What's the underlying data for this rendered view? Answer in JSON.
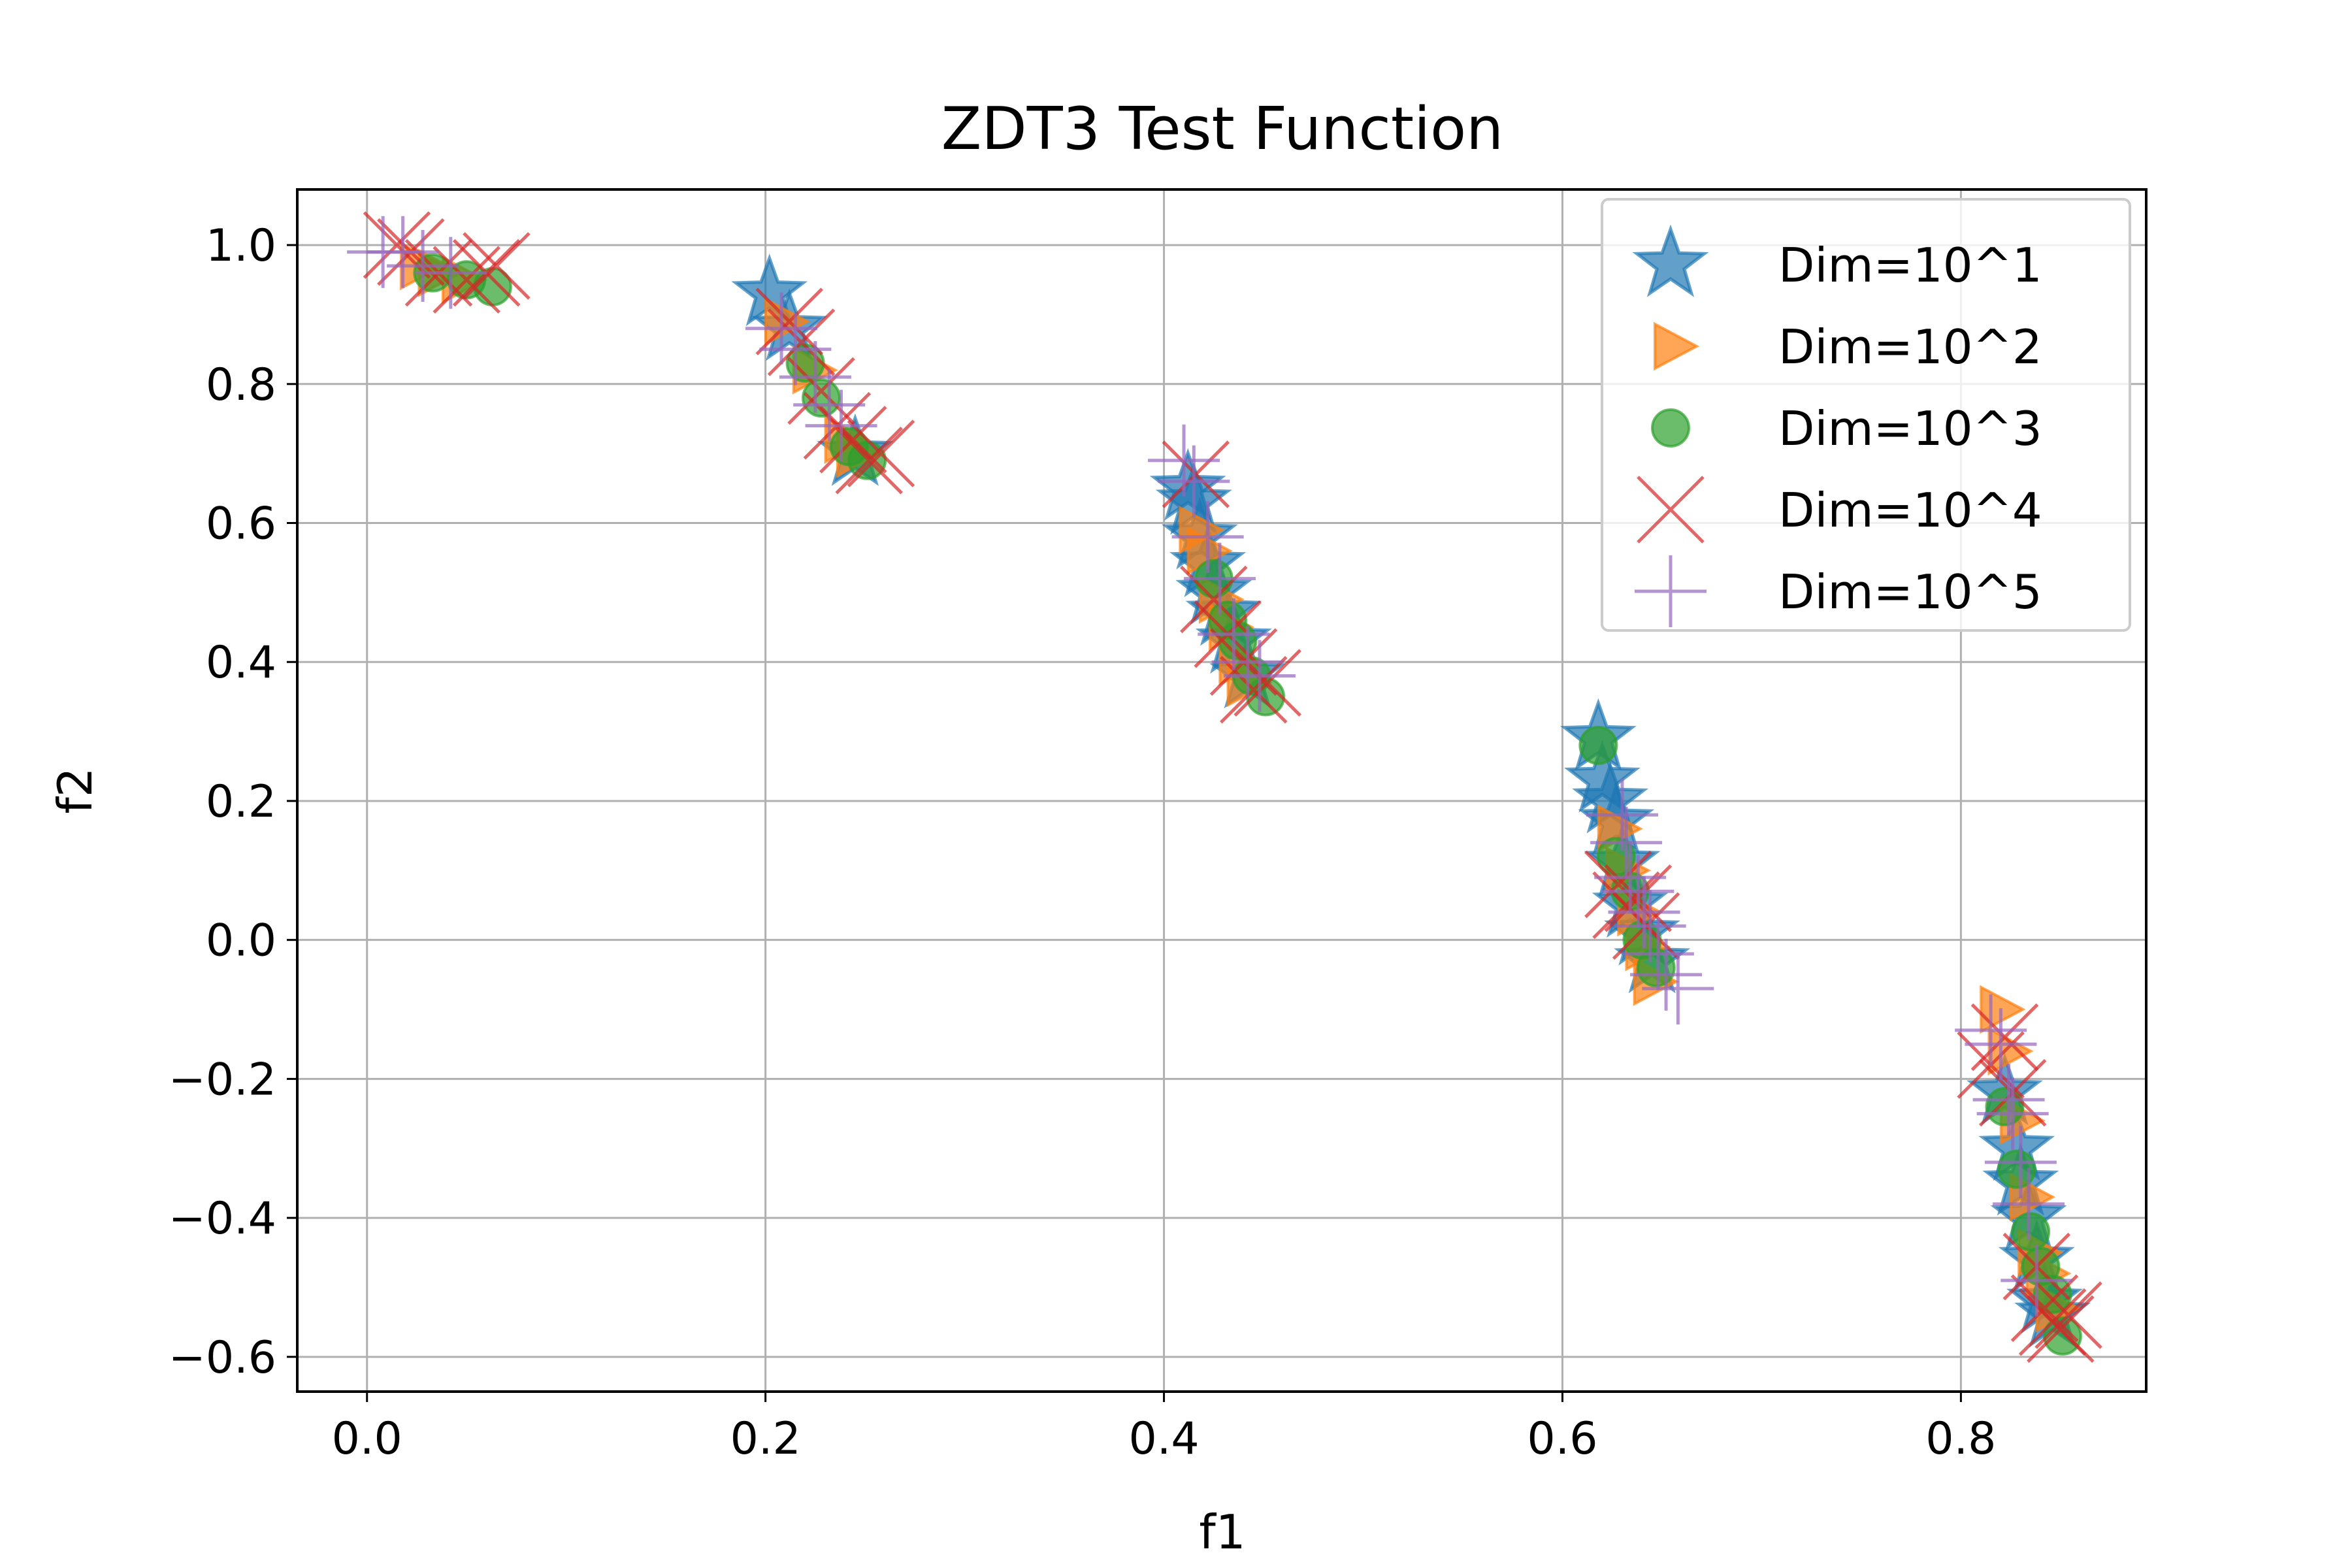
{
  "chart_data": {
    "type": "scatter",
    "title": "ZDT3 Test Function",
    "xlabel": "f1",
    "ylabel": "f2",
    "xlim": [
      -0.035,
      0.893
    ],
    "ylim": [
      -0.65,
      1.08
    ],
    "xticks": [
      0.0,
      0.2,
      0.4,
      0.6,
      0.8
    ],
    "xtick_labels": [
      "0.0",
      "0.2",
      "0.4",
      "0.6",
      "0.8"
    ],
    "yticks": [
      -0.6,
      -0.4,
      -0.2,
      0.0,
      0.2,
      0.4,
      0.6,
      0.8,
      1.0
    ],
    "ytick_labels": [
      "−0.6",
      "−0.4",
      "−0.2",
      "0.0",
      "0.2",
      "0.4",
      "0.6",
      "0.8",
      "1.0"
    ],
    "grid": true,
    "legend_position": "top-right",
    "series": [
      {
        "name": "Dim=10^1",
        "marker": "star",
        "color": "#1f77b4",
        "points": [
          [
            0.202,
            0.93
          ],
          [
            0.212,
            0.88
          ],
          [
            0.245,
            0.7
          ],
          [
            0.412,
            0.65
          ],
          [
            0.415,
            0.63
          ],
          [
            0.418,
            0.58
          ],
          [
            0.422,
            0.54
          ],
          [
            0.425,
            0.5
          ],
          [
            0.43,
            0.47
          ],
          [
            0.435,
            0.43
          ],
          [
            0.442,
            0.38
          ],
          [
            0.618,
            0.29
          ],
          [
            0.62,
            0.23
          ],
          [
            0.624,
            0.2
          ],
          [
            0.627,
            0.17
          ],
          [
            0.63,
            0.11
          ],
          [
            0.634,
            0.05
          ],
          [
            0.64,
            0.01
          ],
          [
            0.645,
            -0.03
          ],
          [
            0.822,
            -0.22
          ],
          [
            0.828,
            -0.3
          ],
          [
            0.83,
            -0.35
          ],
          [
            0.834,
            -0.4
          ],
          [
            0.838,
            -0.46
          ],
          [
            0.842,
            -0.52
          ],
          [
            0.846,
            -0.54
          ]
        ]
      },
      {
        "name": "Dim=10^2",
        "marker": "triangle-right",
        "color": "#ff7f0e",
        "points": [
          [
            0.025,
            0.97
          ],
          [
            0.034,
            0.96
          ],
          [
            0.046,
            0.95
          ],
          [
            0.208,
            0.89
          ],
          [
            0.222,
            0.82
          ],
          [
            0.238,
            0.72
          ],
          [
            0.244,
            0.7
          ],
          [
            0.416,
            0.59
          ],
          [
            0.42,
            0.56
          ],
          [
            0.426,
            0.49
          ],
          [
            0.431,
            0.45
          ],
          [
            0.436,
            0.4
          ],
          [
            0.44,
            0.37
          ],
          [
            0.626,
            0.16
          ],
          [
            0.63,
            0.1
          ],
          [
            0.636,
            0.04
          ],
          [
            0.64,
            -0.01
          ],
          [
            0.644,
            -0.06
          ],
          [
            0.818,
            -0.1
          ],
          [
            0.822,
            -0.16
          ],
          [
            0.828,
            -0.26
          ],
          [
            0.833,
            -0.37
          ],
          [
            0.837,
            -0.45
          ],
          [
            0.841,
            -0.48
          ],
          [
            0.846,
            -0.53
          ]
        ]
      },
      {
        "name": "Dim=10^3",
        "marker": "circle",
        "color": "#2ca02c",
        "points": [
          [
            0.033,
            0.96
          ],
          [
            0.05,
            0.95
          ],
          [
            0.063,
            0.94
          ],
          [
            0.22,
            0.83
          ],
          [
            0.228,
            0.78
          ],
          [
            0.242,
            0.71
          ],
          [
            0.251,
            0.69
          ],
          [
            0.425,
            0.52
          ],
          [
            0.432,
            0.46
          ],
          [
            0.437,
            0.43
          ],
          [
            0.444,
            0.38
          ],
          [
            0.451,
            0.35
          ],
          [
            0.618,
            0.28
          ],
          [
            0.627,
            0.12
          ],
          [
            0.634,
            0.07
          ],
          [
            0.64,
            0.0
          ],
          [
            0.647,
            -0.04
          ],
          [
            0.822,
            -0.24
          ],
          [
            0.828,
            -0.33
          ],
          [
            0.835,
            -0.42
          ],
          [
            0.84,
            -0.47
          ],
          [
            0.846,
            -0.51
          ],
          [
            0.851,
            -0.57
          ]
        ]
      },
      {
        "name": "Dim=10^4",
        "marker": "x",
        "color": "#d62728",
        "points": [
          [
            0.015,
            1.0
          ],
          [
            0.022,
            0.99
          ],
          [
            0.036,
            0.96
          ],
          [
            0.05,
            0.95
          ],
          [
            0.06,
            0.96
          ],
          [
            0.065,
            0.97
          ],
          [
            0.212,
            0.89
          ],
          [
            0.218,
            0.86
          ],
          [
            0.228,
            0.79
          ],
          [
            0.236,
            0.74
          ],
          [
            0.244,
            0.72
          ],
          [
            0.252,
            0.69
          ],
          [
            0.258,
            0.7
          ],
          [
            0.416,
            0.67
          ],
          [
            0.425,
            0.49
          ],
          [
            0.432,
            0.44
          ],
          [
            0.44,
            0.4
          ],
          [
            0.445,
            0.36
          ],
          [
            0.452,
            0.37
          ],
          [
            0.628,
            0.08
          ],
          [
            0.632,
            0.05
          ],
          [
            0.638,
            0.06
          ],
          [
            0.642,
            0.02
          ],
          [
            0.815,
            -0.18
          ],
          [
            0.822,
            -0.14
          ],
          [
            0.826,
            -0.22
          ],
          [
            0.838,
            -0.47
          ],
          [
            0.842,
            -0.53
          ],
          [
            0.846,
            -0.55
          ],
          [
            0.85,
            -0.56
          ],
          [
            0.854,
            -0.54
          ]
        ]
      },
      {
        "name": "Dim=10^5",
        "marker": "plus",
        "color": "#9467bd",
        "points": [
          [
            0.008,
            0.99
          ],
          [
            0.018,
            0.99
          ],
          [
            0.028,
            0.97
          ],
          [
            0.042,
            0.96
          ],
          [
            0.208,
            0.88
          ],
          [
            0.215,
            0.85
          ],
          [
            0.225,
            0.81
          ],
          [
            0.232,
            0.77
          ],
          [
            0.238,
            0.74
          ],
          [
            0.41,
            0.69
          ],
          [
            0.415,
            0.66
          ],
          [
            0.422,
            0.58
          ],
          [
            0.428,
            0.52
          ],
          [
            0.435,
            0.44
          ],
          [
            0.442,
            0.4
          ],
          [
            0.448,
            0.38
          ],
          [
            0.63,
            0.18
          ],
          [
            0.632,
            0.14
          ],
          [
            0.634,
            0.09
          ],
          [
            0.638,
            0.07
          ],
          [
            0.641,
            0.04
          ],
          [
            0.644,
            0.02
          ],
          [
            0.648,
            -0.02
          ],
          [
            0.652,
            -0.05
          ],
          [
            0.658,
            -0.07
          ],
          [
            0.815,
            -0.13
          ],
          [
            0.82,
            -0.15
          ],
          [
            0.824,
            -0.23
          ],
          [
            0.826,
            -0.25
          ],
          [
            0.83,
            -0.32
          ],
          [
            0.834,
            -0.38
          ],
          [
            0.838,
            -0.49
          ]
        ]
      }
    ]
  }
}
